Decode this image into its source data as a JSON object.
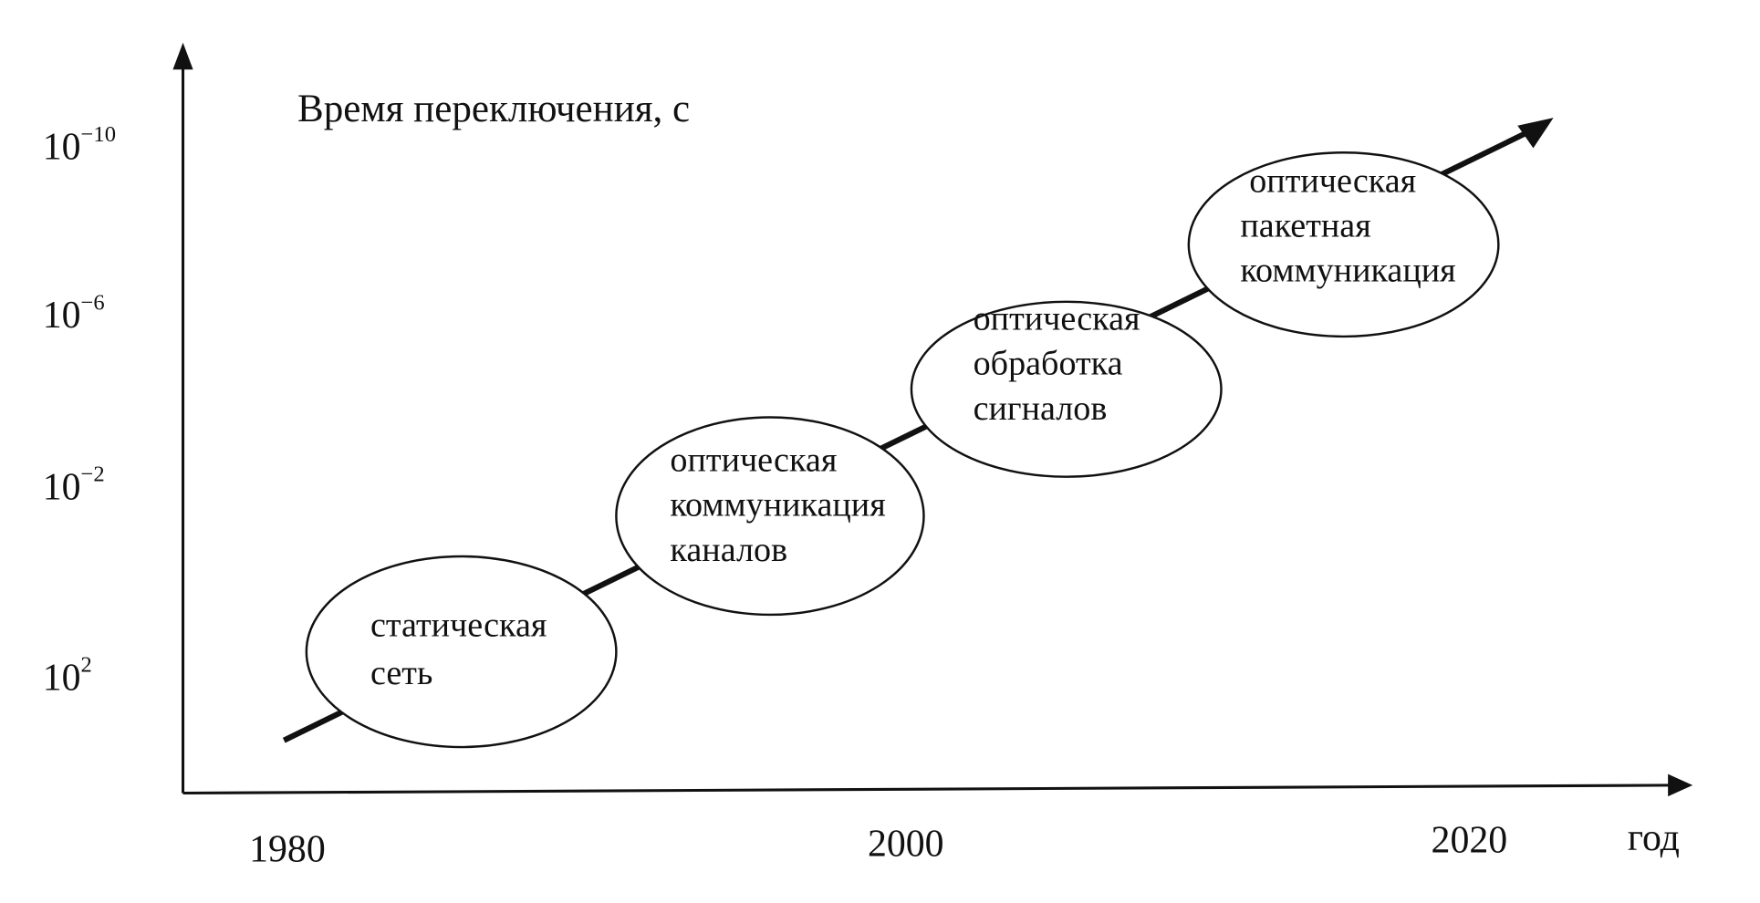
{
  "title": "Время переключения, с",
  "y_axis": {
    "ticks": [
      {
        "base": "10",
        "exp": "−10"
      },
      {
        "base": "10",
        "exp": "−6"
      },
      {
        "base": "10",
        "exp": "−2"
      },
      {
        "base": "10",
        "exp": "2"
      }
    ]
  },
  "x_axis": {
    "ticks": [
      "1980",
      "2000",
      "2020"
    ],
    "label": "год"
  },
  "stages": [
    {
      "lines": [
        "статическая",
        "сеть"
      ]
    },
    {
      "lines": [
        "оптическая",
        "коммуникация",
        "каналов"
      ]
    },
    {
      "lines": [
        "оптическая",
        "обработка",
        "сигналов"
      ]
    },
    {
      "lines": [
        "оптическая",
        "пакетная",
        "коммуникация"
      ]
    }
  ],
  "colors": {
    "ink": "#111111",
    "background": "#ffffff"
  }
}
